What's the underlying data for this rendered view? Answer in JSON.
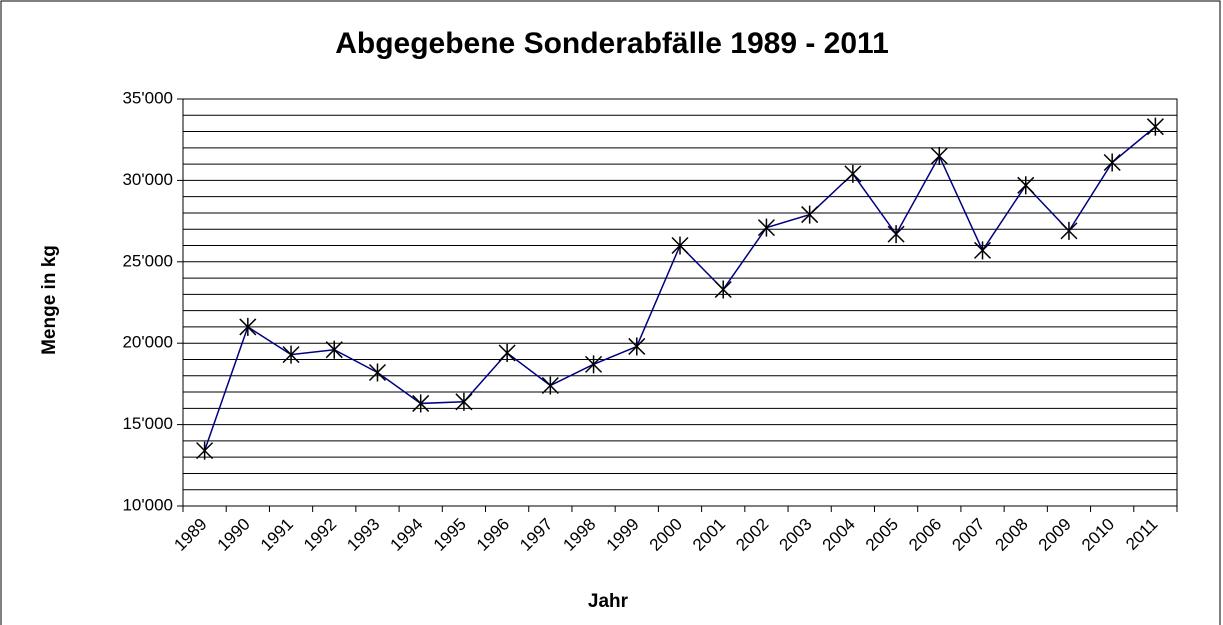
{
  "chart_data": {
    "type": "line",
    "title": "Abgegebene Sonderabfälle 1989 - 2011",
    "x_label": "Jahr",
    "y_label": "Menge in kg",
    "categories": [
      "1989",
      "1990",
      "1991",
      "1992",
      "1993",
      "1994",
      "1995",
      "1996",
      "1997",
      "1998",
      "1999",
      "2000",
      "2001",
      "2002",
      "2003",
      "2004",
      "2005",
      "2006",
      "2007",
      "2008",
      "2009",
      "2010",
      "2011"
    ],
    "series": [
      {
        "name": "Menge in kg",
        "color": "#000080",
        "marker_color": "#000000",
        "values": [
          13400,
          21000,
          19300,
          19600,
          18200,
          16300,
          16400,
          19400,
          17400,
          18700,
          19800,
          26000,
          23300,
          27100,
          27900,
          30400,
          26700,
          31500,
          25700,
          29700,
          26900,
          31100,
          33300
        ]
      }
    ],
    "ylim": [
      10000,
      35000
    ],
    "yticks": [
      {
        "value": 10000,
        "label": "10'000"
      },
      {
        "value": 15000,
        "label": "15'000"
      },
      {
        "value": 20000,
        "label": "20'000"
      },
      {
        "value": 25000,
        "label": "25'000"
      },
      {
        "value": 30000,
        "label": "30'000"
      },
      {
        "value": 35000,
        "label": "35'000"
      }
    ],
    "minor_yticks": [
      11000,
      12000,
      13000,
      14000,
      16000,
      17000,
      18000,
      19000,
      21000,
      22000,
      23000,
      24000,
      26000,
      27000,
      28000,
      29000,
      31000,
      32000,
      33000,
      34000
    ],
    "grid": true
  }
}
